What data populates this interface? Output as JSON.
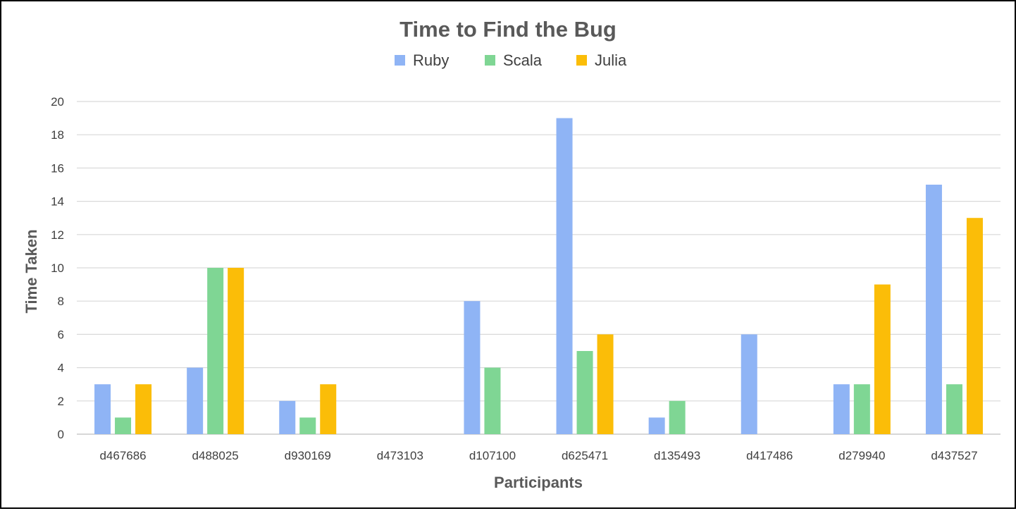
{
  "chart_data": {
    "type": "bar",
    "title": "Time to Find the Bug",
    "xlabel": "Participants",
    "ylabel": "Time Taken",
    "ylim": [
      0,
      20
    ],
    "ytick_step": 2,
    "grid": true,
    "legend_position": "top",
    "categories": [
      "d467686",
      "d488025",
      "d930169",
      "d473103",
      "d107100",
      "d625471",
      "d135493",
      "d417486",
      "d279940",
      "d437527"
    ],
    "series": [
      {
        "name": "Ruby",
        "color": "#8fb4f5",
        "values": [
          3,
          4,
          2,
          null,
          8,
          19,
          1,
          6,
          3,
          15
        ]
      },
      {
        "name": "Scala",
        "color": "#7fd694",
        "values": [
          1,
          10,
          1,
          null,
          4,
          5,
          2,
          null,
          3,
          3
        ]
      },
      {
        "name": "Julia",
        "color": "#fbbd08",
        "values": [
          3,
          10,
          3,
          null,
          null,
          6,
          null,
          null,
          9,
          13
        ]
      }
    ]
  }
}
